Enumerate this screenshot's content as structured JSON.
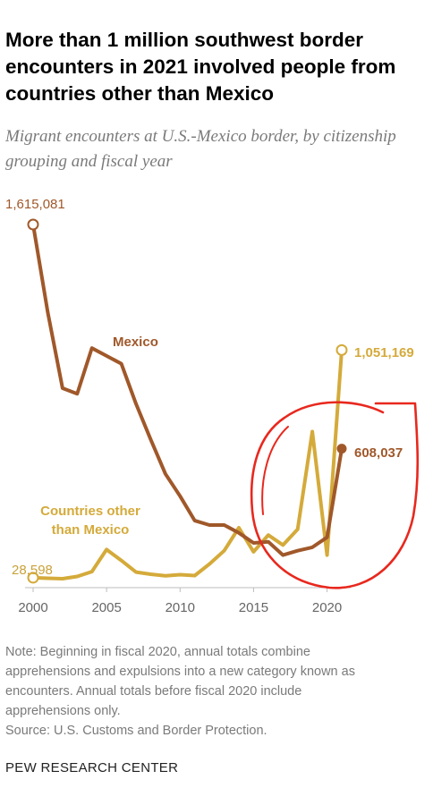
{
  "header": {
    "title": "More than 1 million southwest border encounters in 2021 involved people from countries other than Mexico",
    "subtitle": "Migrant encounters at U.S.-Mexico border, by citizenship grouping and fiscal year"
  },
  "chart_data": {
    "type": "line",
    "x": [
      2000,
      2001,
      2002,
      2003,
      2004,
      2005,
      2006,
      2007,
      2008,
      2009,
      2010,
      2011,
      2012,
      2013,
      2014,
      2015,
      2016,
      2017,
      2018,
      2019,
      2020,
      2021
    ],
    "xlim": [
      2000,
      2021
    ],
    "ylim": [
      0,
      1615081
    ],
    "xticks": [
      "2000",
      "2005",
      "2010",
      "2015",
      "2020"
    ],
    "grid": false,
    "legend": "direct labels",
    "series": [
      {
        "name": "Mexico",
        "color": "#a0582a",
        "values": [
          1615081,
          1220000,
          880000,
          855000,
          1060000,
          1025000,
          990000,
          810000,
          650000,
          495000,
          395000,
          285000,
          265000,
          265000,
          230000,
          185000,
          190000,
          130000,
          150000,
          165000,
          210000,
          608037
        ]
      },
      {
        "name": "Countries other than Mexico",
        "color": "#d4aa3a",
        "values": [
          28598,
          26000,
          24000,
          34000,
          56000,
          155000,
          106000,
          54000,
          44000,
          37000,
          42000,
          38000,
          90000,
          150000,
          253000,
          145000,
          220000,
          175000,
          246000,
          685000,
          130000,
          1051169
        ]
      }
    ],
    "annotations": {
      "mexico_start": "1,615,081",
      "others_start": "28,598",
      "mexico_end": "608,037",
      "others_end": "1,051,169",
      "mexico_label": "Mexico",
      "others_label_line1": "Countries other",
      "others_label_line2": "than Mexico"
    }
  },
  "footer": {
    "note_lines": [
      "Note: Beginning in fiscal 2020, annual totals combine",
      "apprehensions and expulsions into a new category known as",
      "encounters. Annual totals before fiscal 2020 include",
      "apprehensions only."
    ],
    "source": "Source: U.S. Customs and Border Protection.",
    "brand": "PEW RESEARCH CENTER"
  },
  "markup": {
    "color": "#e8281e",
    "shape": "hand-drawn circle"
  }
}
